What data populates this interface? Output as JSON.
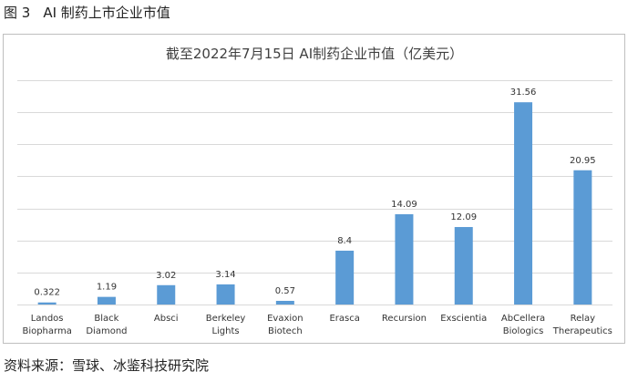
{
  "figure": {
    "number": "图 3",
    "caption": "AI 制药上市企业市值"
  },
  "source": "资料来源：雪球、冰鉴科技研究院",
  "chart_data": {
    "type": "bar",
    "title": "截至2022年7月15日 AI制药企业市值（亿美元）",
    "xlabel": "",
    "ylabel": "",
    "ylim": [
      0,
      35
    ],
    "grid": true,
    "categories": [
      [
        "Landos",
        "Biopharma"
      ],
      [
        "Black",
        "Diamond"
      ],
      [
        "Absci"
      ],
      [
        "Berkeley",
        "Lights"
      ],
      [
        "Evaxion",
        "Biotech"
      ],
      [
        "Erasca"
      ],
      [
        "Recursion"
      ],
      [
        "Exscientia"
      ],
      [
        "AbCellera",
        "Biologics"
      ],
      [
        "Relay",
        "Therapeutics"
      ]
    ],
    "values": [
      0.322,
      1.19,
      3.02,
      3.14,
      0.57,
      8.4,
      14.09,
      12.09,
      31.56,
      20.95
    ],
    "value_labels": [
      "0.322",
      "1.19",
      "3.02",
      "3.14",
      "0.57",
      "8.4",
      "14.09",
      "12.09",
      "31.56",
      "20.95"
    ],
    "bar_color": "#5b9bd5",
    "grid_color": "#d9d9d9"
  }
}
